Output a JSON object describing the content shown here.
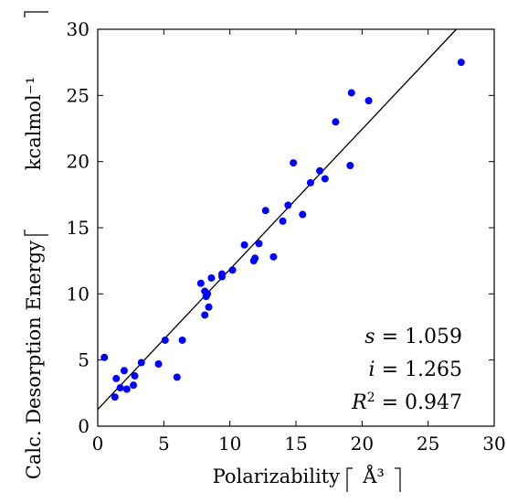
{
  "chart_data": {
    "type": "scatter",
    "xlabel": "Polarizability",
    "xlabel_unit": "Å³",
    "ylabel": "Calc. Desorption Energy",
    "ylabel_unit": "kcalmol⁻¹",
    "xlim": [
      0,
      30
    ],
    "ylim": [
      0,
      30
    ],
    "xticks": [
      0,
      5,
      10,
      15,
      20,
      25,
      30
    ],
    "yticks": [
      0,
      5,
      10,
      15,
      20,
      25,
      30
    ],
    "grid": false,
    "point_color": "#0000ff",
    "line_color": "#000000",
    "fit": {
      "slope": 1.059,
      "intercept": 1.265
    },
    "stats": {
      "s": {
        "symbol": "s",
        "value": "1.059"
      },
      "i": {
        "symbol": "i",
        "value": "1.265"
      },
      "r2": {
        "symbol": "R",
        "sup": "2",
        "value": "0.947"
      }
    },
    "points": [
      [
        0.5,
        5.2
      ],
      [
        1.3,
        2.2
      ],
      [
        1.4,
        3.6
      ],
      [
        1.7,
        2.9
      ],
      [
        2.0,
        4.2
      ],
      [
        2.2,
        2.8
      ],
      [
        2.7,
        3.1
      ],
      [
        2.8,
        3.8
      ],
      [
        3.3,
        4.8
      ],
      [
        4.6,
        4.7
      ],
      [
        5.1,
        6.5
      ],
      [
        6.0,
        3.7
      ],
      [
        6.4,
        6.5
      ],
      [
        7.8,
        10.8
      ],
      [
        8.1,
        8.4
      ],
      [
        8.1,
        10.2
      ],
      [
        8.2,
        9.8
      ],
      [
        8.3,
        10.0
      ],
      [
        8.4,
        9.0
      ],
      [
        8.6,
        11.2
      ],
      [
        9.4,
        11.5
      ],
      [
        9.4,
        11.3
      ],
      [
        10.2,
        11.8
      ],
      [
        11.1,
        13.7
      ],
      [
        11.8,
        12.5
      ],
      [
        11.9,
        12.7
      ],
      [
        12.2,
        13.8
      ],
      [
        12.7,
        16.3
      ],
      [
        13.3,
        12.8
      ],
      [
        14.0,
        15.5
      ],
      [
        14.4,
        16.7
      ],
      [
        14.8,
        19.9
      ],
      [
        15.5,
        16.0
      ],
      [
        16.1,
        18.4
      ],
      [
        16.8,
        19.3
      ],
      [
        17.2,
        18.7
      ],
      [
        18.0,
        23.0
      ],
      [
        19.1,
        19.7
      ],
      [
        19.2,
        25.2
      ],
      [
        20.5,
        24.6
      ],
      [
        27.5,
        27.5
      ]
    ]
  }
}
